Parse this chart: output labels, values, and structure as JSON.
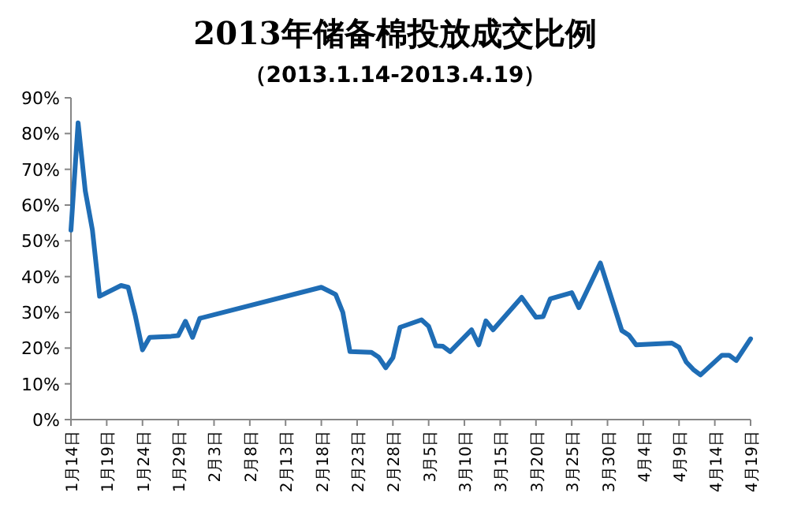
{
  "chart_data": {
    "type": "line",
    "title": "2013年储备棉投放成交比例",
    "subtitle": "（2013.1.14-2013.4.19）",
    "x": [
      "2013-01-14",
      "2013-01-15",
      "2013-01-16",
      "2013-01-17",
      "2013-01-18",
      "2013-01-21",
      "2013-01-22",
      "2013-01-23",
      "2013-01-24",
      "2013-01-25",
      "2013-01-28",
      "2013-01-29",
      "2013-01-30",
      "2013-01-31",
      "2013-02-01",
      "2013-02-18",
      "2013-02-19",
      "2013-02-20",
      "2013-02-21",
      "2013-02-22",
      "2013-02-25",
      "2013-02-26",
      "2013-02-27",
      "2013-02-28",
      "2013-03-01",
      "2013-03-04",
      "2013-03-05",
      "2013-03-06",
      "2013-03-07",
      "2013-03-08",
      "2013-03-11",
      "2013-03-12",
      "2013-03-13",
      "2013-03-14",
      "2013-03-18",
      "2013-03-20",
      "2013-03-21",
      "2013-03-22",
      "2013-03-25",
      "2013-03-26",
      "2013-03-29",
      "2013-04-01",
      "2013-04-02",
      "2013-04-03",
      "2013-04-08",
      "2013-04-09",
      "2013-04-10",
      "2013-04-11",
      "2013-04-12",
      "2013-04-15",
      "2013-04-16",
      "2013-04-17",
      "2013-04-19"
    ],
    "series": [
      {
        "color": "#1f6db5",
        "values": [
          53,
          83,
          64,
          53,
          34.5,
          37.5,
          37,
          29,
          19.5,
          23,
          23.3,
          23.5,
          27.5,
          23,
          28.3,
          37,
          36,
          35,
          30,
          19,
          18.8,
          17.5,
          14.5,
          17.3,
          25.8,
          27.9,
          26.1,
          20.6,
          20.5,
          19,
          25.1,
          20.9,
          27.6,
          25.1,
          34.2,
          28.6,
          28.8,
          33.8,
          35.5,
          31.3,
          43.8,
          24.9,
          23.6,
          20.9,
          21.4,
          20.2,
          16.1,
          14,
          12.5,
          18,
          18,
          16.5,
          22.6
        ]
      }
    ],
    "xlim": [
      "2013-01-14",
      "2013-04-19"
    ],
    "xticks": [
      {
        "value": "2013-01-14",
        "label": "1月14日"
      },
      {
        "value": "2013-01-19",
        "label": "1月19日"
      },
      {
        "value": "2013-01-24",
        "label": "1月24日"
      },
      {
        "value": "2013-01-29",
        "label": "1月29日"
      },
      {
        "value": "2013-02-03",
        "label": "2月3日"
      },
      {
        "value": "2013-02-08",
        "label": "2月8日"
      },
      {
        "value": "2013-02-13",
        "label": "2月13日"
      },
      {
        "value": "2013-02-18",
        "label": "2月18日"
      },
      {
        "value": "2013-02-23",
        "label": "2月23日"
      },
      {
        "value": "2013-02-28",
        "label": "2月28日"
      },
      {
        "value": "2013-03-05",
        "label": "3月5日"
      },
      {
        "value": "2013-03-10",
        "label": "3月10日"
      },
      {
        "value": "2013-03-15",
        "label": "3月15日"
      },
      {
        "value": "2013-03-20",
        "label": "3月20日"
      },
      {
        "value": "2013-03-25",
        "label": "3月25日"
      },
      {
        "value": "2013-03-30",
        "label": "3月30日"
      },
      {
        "value": "2013-04-04",
        "label": "4月4日"
      },
      {
        "value": "2013-04-09",
        "label": "4月9日"
      },
      {
        "value": "2013-04-14",
        "label": "4月14日"
      },
      {
        "value": "2013-04-19",
        "label": "4月19日"
      }
    ],
    "ylim": [
      0,
      90
    ],
    "yticks": [
      {
        "value": 0,
        "label": "0%"
      },
      {
        "value": 10,
        "label": "10%"
      },
      {
        "value": 20,
        "label": "20%"
      },
      {
        "value": 30,
        "label": "30%"
      },
      {
        "value": 40,
        "label": "40%"
      },
      {
        "value": 50,
        "label": "50%"
      },
      {
        "value": 60,
        "label": "60%"
      },
      {
        "value": 70,
        "label": "70%"
      },
      {
        "value": 80,
        "label": "80%"
      },
      {
        "value": 90,
        "label": "90%"
      }
    ],
    "marker": "none",
    "line_style": "solid"
  }
}
